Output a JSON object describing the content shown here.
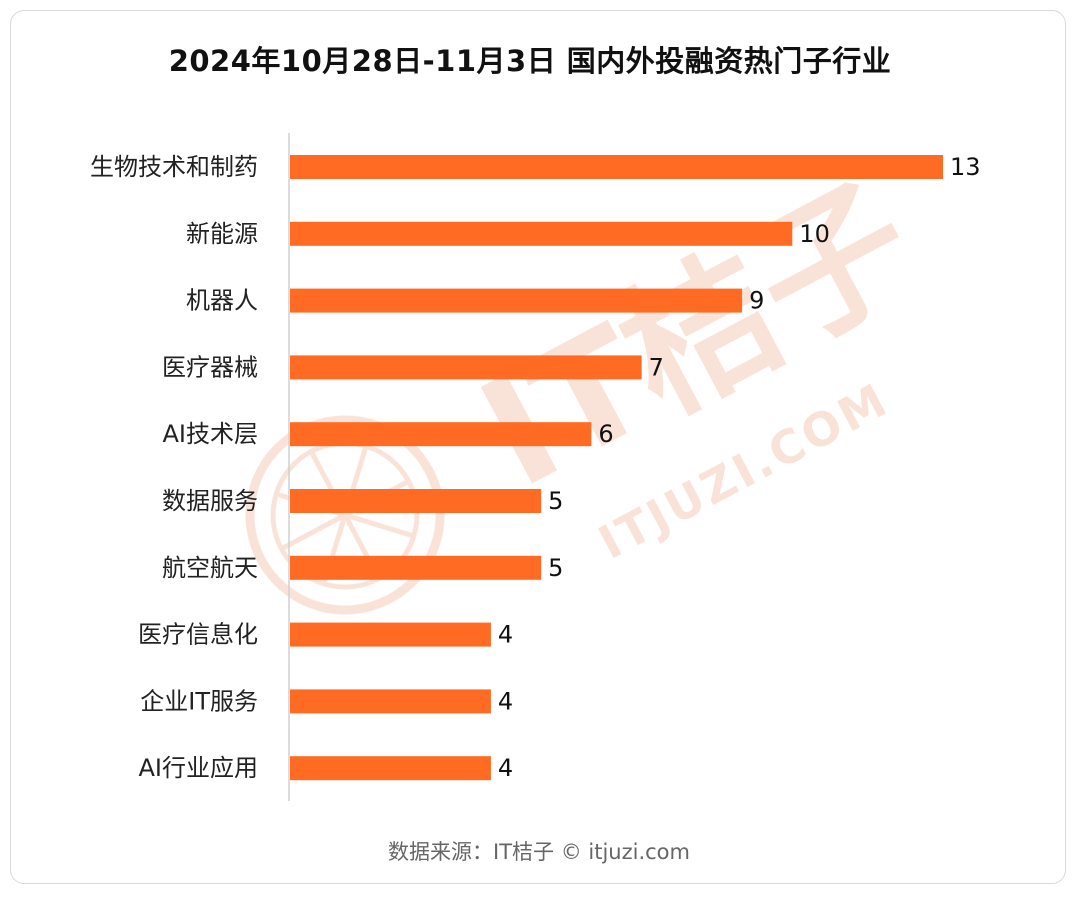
{
  "title": "2024年10月28日-11月3日 国内外投融资热门子行业",
  "source": "数据来源：IT桔子 © itjuzi.com",
  "watermark": {
    "logo_text": "IT桔子",
    "domain_text": "ITJUZI.COM",
    "color": "#f7d9cc"
  },
  "colors": {
    "bar": "#ff6b23",
    "axis": "#d0d0d0",
    "label": "#222222",
    "value": "#111111"
  },
  "chart_data": {
    "type": "bar",
    "orientation": "horizontal",
    "title": "2024年10月28日-11月3日 国内外投融资热门子行业",
    "categories": [
      "生物技术和制药",
      "新能源",
      "机器人",
      "医疗器械",
      "AI技术层",
      "数据服务",
      "航空航天",
      "医疗信息化",
      "企业IT服务",
      "AI行业应用"
    ],
    "values": [
      13,
      10,
      9,
      7,
      6,
      5,
      5,
      4,
      4,
      4
    ],
    "xlim": [
      0,
      13
    ],
    "grid": false,
    "legend": false,
    "data_labels": true
  }
}
